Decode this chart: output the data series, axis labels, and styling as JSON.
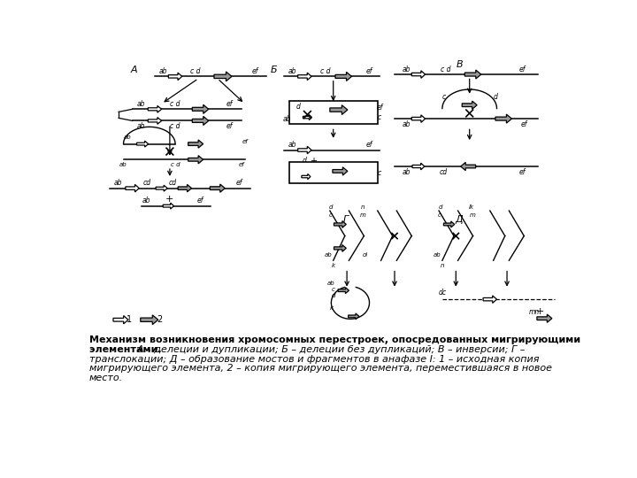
{
  "caption_line1": "Механизм возникновения хромосомных перестроек, опосредованных мигрирующими",
  "caption_line2": "элементами. А – делеции и дупликации; Б – делеции без дупликаций; В – инверсии; Г –",
  "caption_line3": "транслокации; Д – образование мостов и фрагментов в анафазе I: 1 – исходная копия",
  "caption_line4": "мигрирующего элемента, 2 – копия мигрирующего элемента, переместившаяся в новое",
  "caption_line5": "место.",
  "bg_color": "#ffffff"
}
